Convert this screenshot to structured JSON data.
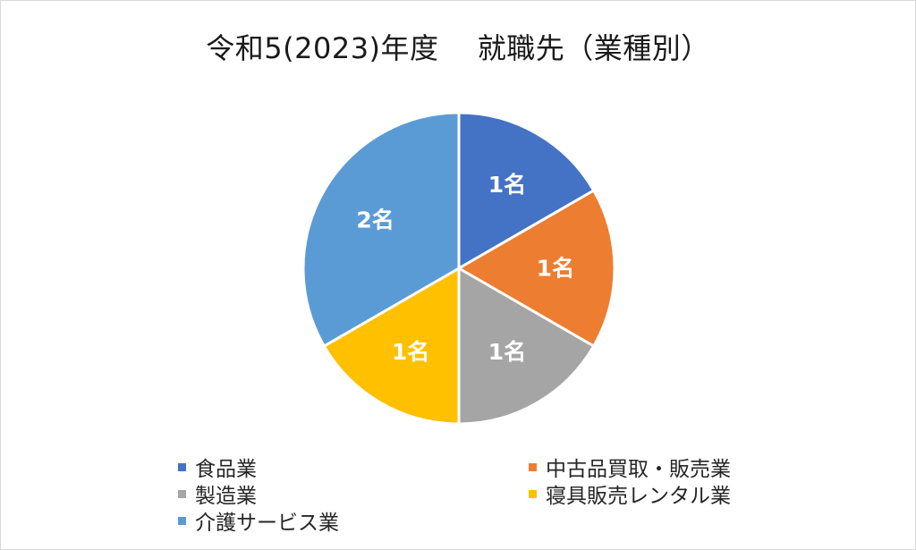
{
  "chart_data": {
    "type": "pie",
    "title": "令和5(2023)年度　 就職先（業種別）",
    "unit": "名",
    "categories": [
      "食品業",
      "中古品買取・販売業",
      "製造業",
      "寝具販売レンタル業",
      "介護サービス業"
    ],
    "values": [
      1,
      1,
      1,
      1,
      2
    ],
    "data_labels": [
      "1名",
      "1名",
      "1名",
      "1名",
      "2名"
    ],
    "colors": [
      "#4472C4",
      "#ED7D31",
      "#A5A5A5",
      "#FFC000",
      "#5B9BD5"
    ],
    "legend_position": "bottom",
    "start_angle": "top, clockwise"
  }
}
